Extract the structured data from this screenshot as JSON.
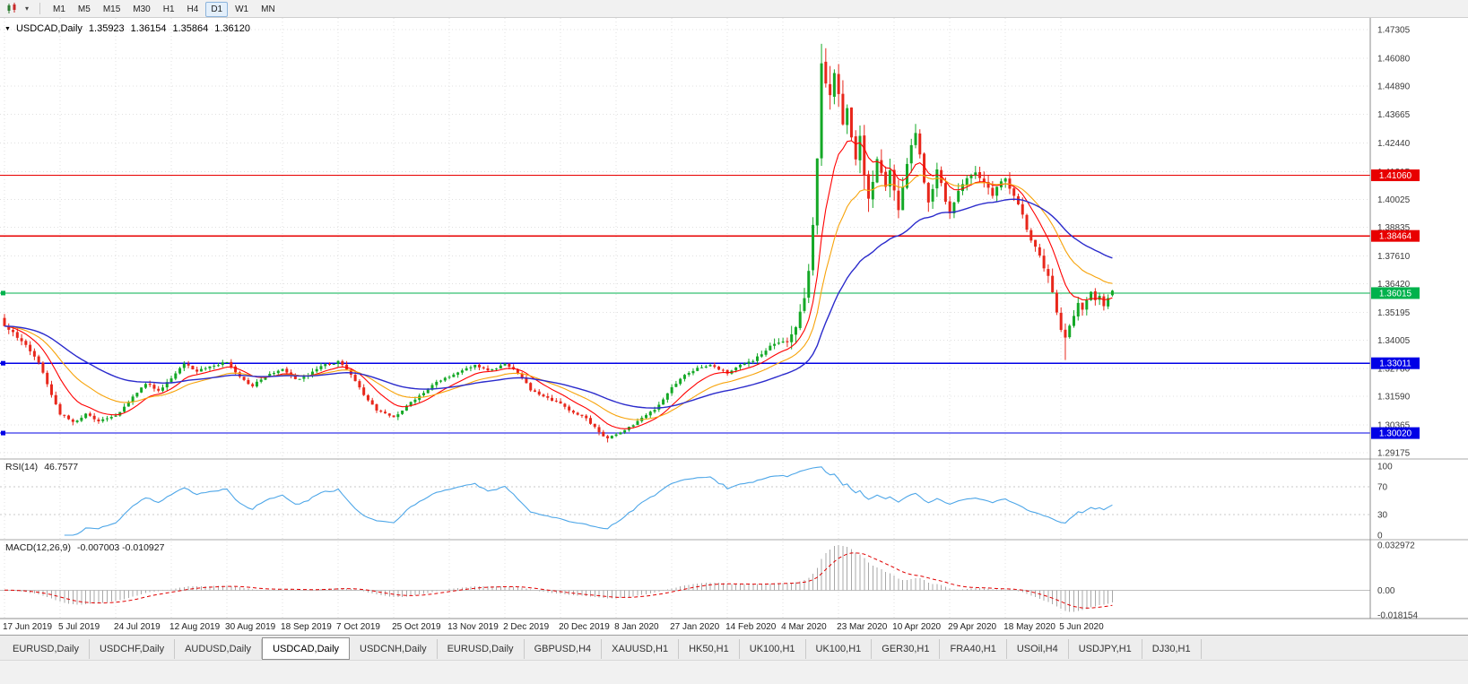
{
  "toolbar": {
    "timeframes": [
      "M1",
      "M5",
      "M15",
      "M30",
      "H1",
      "H4",
      "D1",
      "W1",
      "MN"
    ],
    "active_timeframe": "D1",
    "icons": [
      "candlestick-chart-icon",
      "chevron-down-icon"
    ]
  },
  "chart": {
    "symbol_label": "USDCAD,Daily",
    "ohlc": {
      "open": "1.35923",
      "high": "1.36154",
      "low": "1.35864",
      "close": "1.36120"
    }
  },
  "rsi": {
    "name": "RSI(14)",
    "value": "46.7577",
    "levels": [
      "100",
      "70",
      "30",
      "0"
    ],
    "color": "#4DA6E8"
  },
  "macd": {
    "name": "MACD(12,26,9)",
    "value": "-0.007003 -0.010927",
    "levels": [
      "0.032972",
      "0.00",
      "-0.018154"
    ],
    "histogram_color": "#A8A8A8",
    "signal_color": "#E00000"
  },
  "tabs": {
    "items": [
      "EURUSD,Daily",
      "USDCHF,Daily",
      "AUDUSD,Daily",
      "USDCAD,Daily",
      "USDCNH,Daily",
      "EURUSD,Daily",
      "GBPUSD,H4",
      "XAUUSD,H1",
      "HK50,H1",
      "UK100,H1",
      "UK100,H1",
      "GER30,H1",
      "FRA40,H1",
      "USOil,H4",
      "USDJPY,H1",
      "DJ30,H1"
    ],
    "active_index": 3
  },
  "chart_data": {
    "type": "candlestick",
    "symbol": "USDCAD",
    "timeframe": "D1",
    "num_bars": 260,
    "bars_per_label": 13,
    "ylim": [
      1.2891,
      1.478
    ],
    "up_color": "#14A826",
    "down_color": "#E8271B",
    "y_ticks": [
      "1.47305",
      "1.46080",
      "1.44890",
      "1.43665",
      "1.42440",
      "1.41215",
      "1.40025",
      "1.38835",
      "1.37610",
      "1.36420",
      "1.35195",
      "1.34005",
      "1.32780",
      "1.31590",
      "1.30365",
      "1.29175"
    ],
    "x_labels": [
      "17 Jun 2019",
      "5 Jul 2019",
      "24 Jul 2019",
      "12 Aug 2019",
      "30 Aug 2019",
      "18 Sep 2019",
      "7 Oct 2019",
      "25 Oct 2019",
      "13 Nov 2019",
      "2 Dec 2019",
      "20 Dec 2019",
      "8 Jan 2020",
      "27 Jan 2020",
      "14 Feb 2020",
      "4 Mar 2020",
      "23 Mar 2020",
      "10 Apr 2020",
      "29 Apr 2020",
      "18 May 2020",
      "5 Jun 2020"
    ],
    "levels": [
      {
        "value": 1.4106,
        "label": "1.41060",
        "color": "#E80000",
        "type": "resistance-line",
        "handle": false
      },
      {
        "value": 1.38464,
        "label": "1.38464",
        "color": "#E80000",
        "type": "resistance-line",
        "handle": false
      },
      {
        "value": 1.36015,
        "label": "1.36015",
        "color": "#00B24C",
        "type": "bid-price-line",
        "handle": true
      },
      {
        "value": 1.33011,
        "label": "1.33011",
        "color": "#0000E6",
        "type": "support-line",
        "handle": true
      },
      {
        "value": 1.3002,
        "label": "1.30020",
        "color": "#0000E6",
        "type": "support-line",
        "handle": true
      }
    ],
    "overlays": [
      {
        "name": "fast-ma",
        "period": 10,
        "color": "#FF0000",
        "width": 1.1
      },
      {
        "name": "mid-ma",
        "period": 21,
        "color": "#F7A30A",
        "width": 1.1
      },
      {
        "name": "slow-ma",
        "period": 45,
        "color": "#2B2BCC",
        "width": 1.4
      }
    ],
    "last_bar": {
      "open": 1.35923,
      "high": 1.36154,
      "low": 1.35864,
      "close": 1.3612
    },
    "extreme_high": 1.4669,
    "extreme_low": 1.2962,
    "secondary_low": {
      "bar": 248,
      "price": 1.3315
    },
    "close_anchors": [
      [
        0,
        1.346
      ],
      [
        2,
        1.3432
      ],
      [
        5,
        1.3382
      ],
      [
        8,
        1.33
      ],
      [
        11,
        1.317
      ],
      [
        13,
        1.3085
      ],
      [
        16,
        1.3048
      ],
      [
        19,
        1.3082
      ],
      [
        22,
        1.3052
      ],
      [
        26,
        1.3075
      ],
      [
        29,
        1.313
      ],
      [
        33,
        1.3215
      ],
      [
        36,
        1.3185
      ],
      [
        39,
        1.324
      ],
      [
        42,
        1.33
      ],
      [
        45,
        1.3265
      ],
      [
        48,
        1.329
      ],
      [
        52,
        1.331
      ],
      [
        55,
        1.3245
      ],
      [
        58,
        1.3205
      ],
      [
        61,
        1.3245
      ],
      [
        65,
        1.327
      ],
      [
        68,
        1.3225
      ],
      [
        71,
        1.325
      ],
      [
        74,
        1.329
      ],
      [
        78,
        1.331
      ],
      [
        81,
        1.3255
      ],
      [
        84,
        1.3165
      ],
      [
        87,
        1.31
      ],
      [
        91,
        1.3075
      ],
      [
        94,
        1.312
      ],
      [
        97,
        1.316
      ],
      [
        100,
        1.321
      ],
      [
        104,
        1.3245
      ],
      [
        107,
        1.327
      ],
      [
        110,
        1.329
      ],
      [
        113,
        1.327
      ],
      [
        117,
        1.3295
      ],
      [
        120,
        1.326
      ],
      [
        123,
        1.3185
      ],
      [
        126,
        1.3155
      ],
      [
        130,
        1.313
      ],
      [
        133,
        1.309
      ],
      [
        136,
        1.306
      ],
      [
        139,
        1.301
      ],
      [
        141,
        1.298
      ],
      [
        143,
        1.2998
      ],
      [
        146,
        1.303
      ],
      [
        149,
        1.3062
      ],
      [
        152,
        1.3105
      ],
      [
        156,
        1.32
      ],
      [
        159,
        1.3255
      ],
      [
        162,
        1.3285
      ],
      [
        165,
        1.33
      ],
      [
        169,
        1.3262
      ],
      [
        172,
        1.3295
      ],
      [
        175,
        1.3312
      ],
      [
        178,
        1.336
      ],
      [
        181,
        1.34
      ],
      [
        183,
        1.3402
      ],
      [
        185,
        1.345
      ],
      [
        187,
        1.358
      ],
      [
        188,
        1.37
      ],
      [
        189,
        1.39
      ],
      [
        190,
        1.42
      ],
      [
        191,
        1.458
      ],
      [
        192,
        1.45
      ],
      [
        193,
        1.442
      ],
      [
        194,
        1.455
      ],
      [
        195,
        1.448
      ],
      [
        196,
        1.431
      ],
      [
        197,
        1.44
      ],
      [
        198,
        1.426
      ],
      [
        199,
        1.416
      ],
      [
        200,
        1.425
      ],
      [
        201,
        1.412
      ],
      [
        202,
        1.403
      ],
      [
        203,
        1.41
      ],
      [
        204,
        1.419
      ],
      [
        205,
        1.413
      ],
      [
        206,
        1.407
      ],
      [
        207,
        1.414
      ],
      [
        208,
        1.406
      ],
      [
        209,
        1.398
      ],
      [
        210,
        1.407
      ],
      [
        211,
        1.416
      ],
      [
        212,
        1.422
      ],
      [
        213,
        1.4265
      ],
      [
        214,
        1.417
      ],
      [
        215,
        1.407
      ],
      [
        216,
        1.399
      ],
      [
        217,
        1.405
      ],
      [
        218,
        1.413
      ],
      [
        219,
        1.407
      ],
      [
        220,
        1.4
      ],
      [
        221,
        1.3955
      ],
      [
        223,
        1.403
      ],
      [
        225,
        1.4095
      ],
      [
        227,
        1.4135
      ],
      [
        229,
        1.4075
      ],
      [
        231,
        1.4005
      ],
      [
        233,
        1.4075
      ],
      [
        234,
        1.4095
      ],
      [
        236,
        1.4015
      ],
      [
        238,
        1.3925
      ],
      [
        240,
        1.383
      ],
      [
        242,
        1.3755
      ],
      [
        244,
        1.367
      ],
      [
        245,
        1.3595
      ],
      [
        246,
        1.3515
      ],
      [
        247,
        1.3445
      ],
      [
        248,
        1.34
      ],
      [
        249,
        1.3445
      ],
      [
        250,
        1.3505
      ],
      [
        251,
        1.356
      ],
      [
        252,
        1.353
      ],
      [
        253,
        1.3578
      ],
      [
        254,
        1.3602
      ],
      [
        255,
        1.3562
      ],
      [
        256,
        1.359
      ],
      [
        257,
        1.3548
      ],
      [
        258,
        1.3585
      ],
      [
        259,
        1.3612
      ]
    ],
    "vol_anchors": [
      [
        0,
        0.003
      ],
      [
        10,
        0.0026
      ],
      [
        20,
        0.0022
      ],
      [
        40,
        0.0022
      ],
      [
        60,
        0.002
      ],
      [
        80,
        0.0024
      ],
      [
        100,
        0.002
      ],
      [
        120,
        0.002
      ],
      [
        140,
        0.0024
      ],
      [
        160,
        0.002
      ],
      [
        175,
        0.0024
      ],
      [
        183,
        0.005
      ],
      [
        188,
        0.0085
      ],
      [
        192,
        0.0125
      ],
      [
        196,
        0.011
      ],
      [
        202,
        0.0095
      ],
      [
        208,
        0.008
      ],
      [
        214,
        0.007
      ],
      [
        220,
        0.006
      ],
      [
        226,
        0.005
      ],
      [
        232,
        0.0045
      ],
      [
        238,
        0.0045
      ],
      [
        244,
        0.005
      ],
      [
        248,
        0.0058
      ],
      [
        252,
        0.0042
      ],
      [
        259,
        0.003
      ]
    ]
  }
}
